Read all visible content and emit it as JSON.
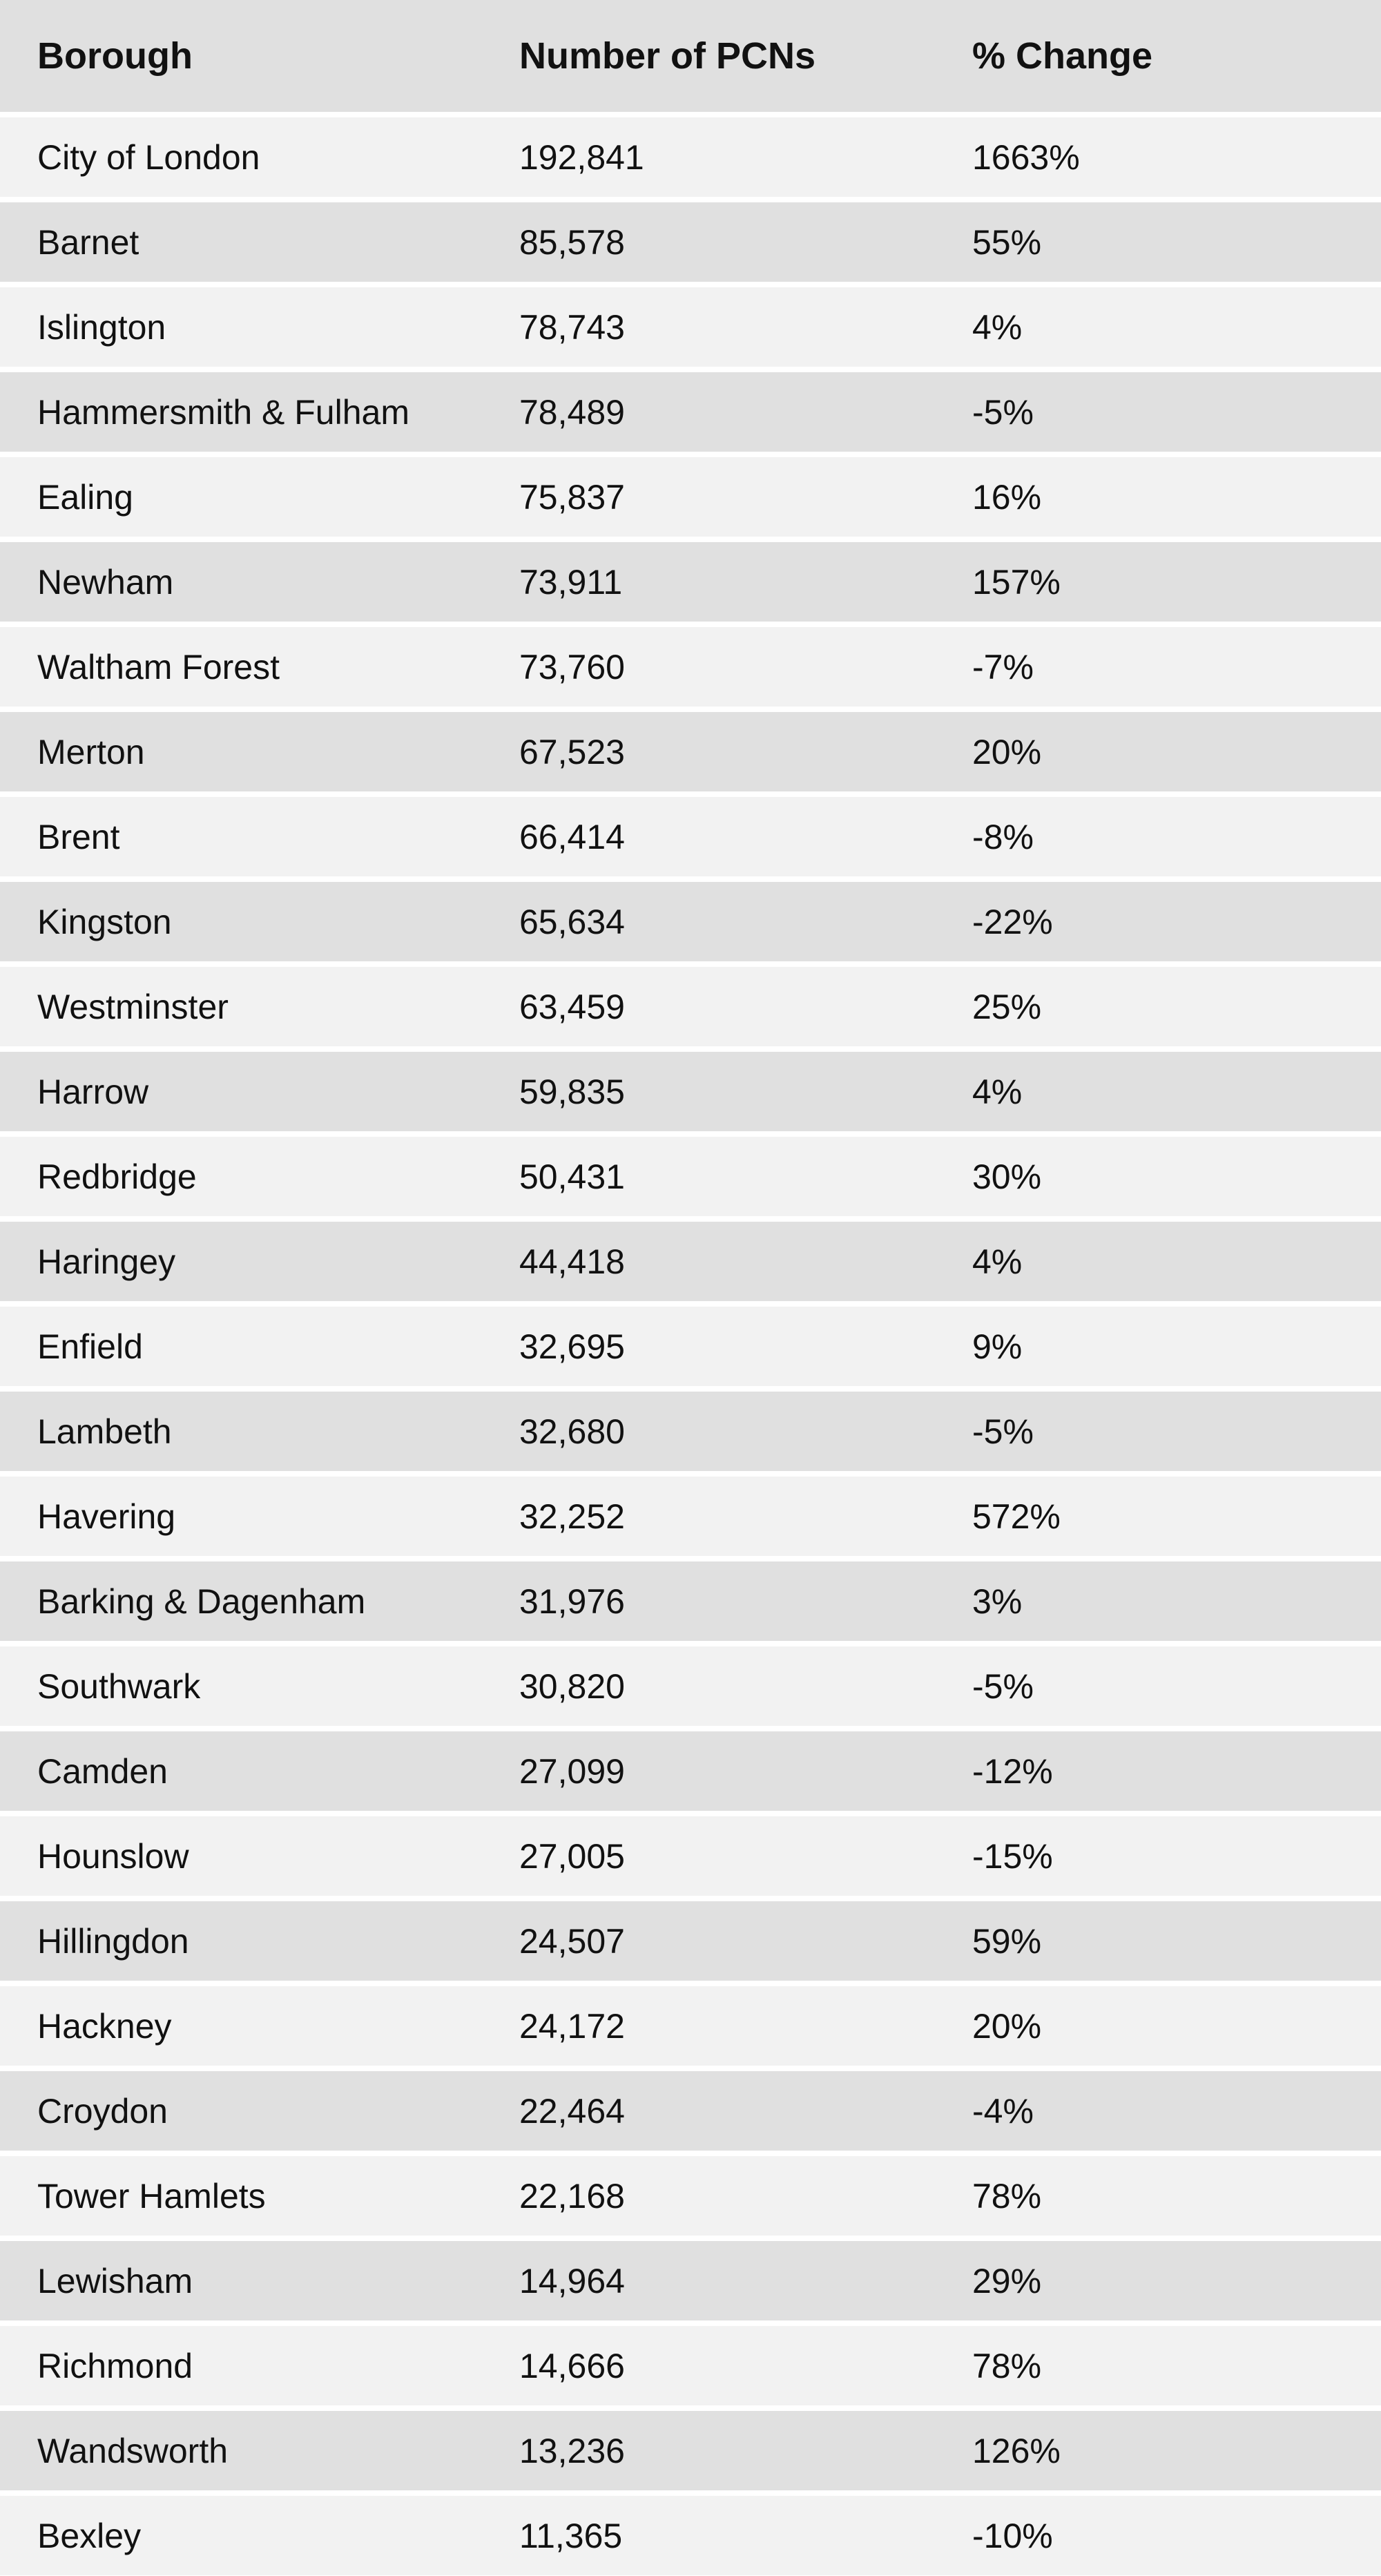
{
  "table": {
    "headers": [
      "Borough",
      "Number of PCNs",
      "% Change"
    ],
    "rows": [
      [
        "City of London",
        "192,841",
        "1663%"
      ],
      [
        "Barnet",
        "85,578",
        "55%"
      ],
      [
        "Islington",
        "78,743",
        "4%"
      ],
      [
        "Hammersmith & Fulham",
        "78,489",
        "-5%"
      ],
      [
        "Ealing",
        "75,837",
        "16%"
      ],
      [
        "Newham",
        "73,911",
        "157%"
      ],
      [
        "Waltham Forest",
        "73,760",
        "-7%"
      ],
      [
        "Merton",
        "67,523",
        "20%"
      ],
      [
        "Brent",
        "66,414",
        "-8%"
      ],
      [
        "Kingston",
        "65,634",
        "-22%"
      ],
      [
        "Westminster",
        "63,459",
        "25%"
      ],
      [
        "Harrow",
        "59,835",
        "4%"
      ],
      [
        "Redbridge",
        "50,431",
        "30%"
      ],
      [
        "Haringey",
        "44,418",
        "4%"
      ],
      [
        "Enfield",
        "32,695",
        "9%"
      ],
      [
        "Lambeth",
        "32,680",
        "-5%"
      ],
      [
        "Havering",
        "32,252",
        "572%"
      ],
      [
        "Barking & Dagenham",
        "31,976",
        "3%"
      ],
      [
        "Southwark",
        "30,820",
        "-5%"
      ],
      [
        "Camden",
        "27,099",
        "-12%"
      ],
      [
        "Hounslow",
        "27,005",
        "-15%"
      ],
      [
        "Hillingdon",
        "24,507",
        "59%"
      ],
      [
        "Hackney",
        "24,172",
        "20%"
      ],
      [
        "Croydon",
        "22,464",
        "-4%"
      ],
      [
        "Tower Hamlets",
        "22,168",
        "78%"
      ],
      [
        "Lewisham",
        "14,964",
        "29%"
      ],
      [
        "Richmond",
        "14,666",
        "78%"
      ],
      [
        "Wandsworth",
        "13,236",
        "126%"
      ],
      [
        "Bexley",
        "11,365",
        "-10%"
      ]
    ]
  },
  "colors": {
    "header_bg": "#e0e0e0",
    "row_light": "#f2f2f2",
    "row_dark": "#e0e0e0",
    "separator": "#ffffff"
  }
}
